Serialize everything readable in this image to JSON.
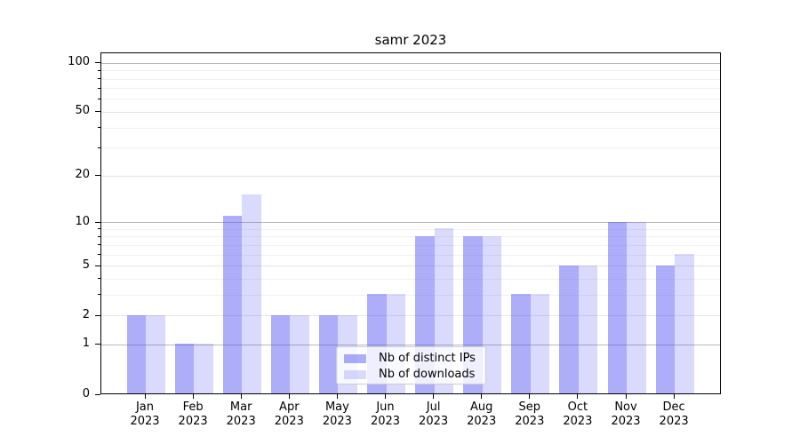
{
  "chart_data": {
    "type": "bar",
    "title": "samr 2023",
    "categories": [
      "Jan 2023",
      "Feb 2023",
      "Mar 2023",
      "Apr 2023",
      "May 2023",
      "Jun 2023",
      "Jul 2023",
      "Aug 2023",
      "Sep 2023",
      "Oct 2023",
      "Nov 2023",
      "Dec 2023"
    ],
    "series": [
      {
        "name": "Nb of distinct IPs",
        "values": [
          2,
          1,
          11,
          2,
          2,
          3,
          8,
          8,
          3,
          5,
          10,
          5
        ],
        "color": "rgba(80,80,245,0.47)"
      },
      {
        "name": "Nb of downloads",
        "values": [
          2,
          1,
          15,
          2,
          2,
          3,
          9,
          8,
          3,
          5,
          10,
          6
        ],
        "color": "rgba(80,80,245,0.21)"
      }
    ],
    "yscale": "log1p",
    "ylim": [
      0,
      115
    ],
    "y_major_ticks": [
      0,
      1,
      2,
      5,
      10,
      20,
      50,
      100
    ],
    "y_minor_ticks": [
      3,
      4,
      6,
      7,
      8,
      9,
      30,
      40,
      60,
      70,
      80,
      90
    ],
    "grid": true,
    "legend_position": "lower center"
  },
  "colors": {
    "bar_dark": "rgba(80,80,245,0.47)",
    "bar_light": "rgba(80,80,245,0.21)",
    "grid_power10": "#b8b8b8",
    "grid_labeled": "#e4e4e4",
    "grid_minor": "#f1f1f1",
    "spine": "#000000",
    "legend_border": "#cccccc",
    "legend_bg": "rgba(255,255,255,0.8)"
  }
}
